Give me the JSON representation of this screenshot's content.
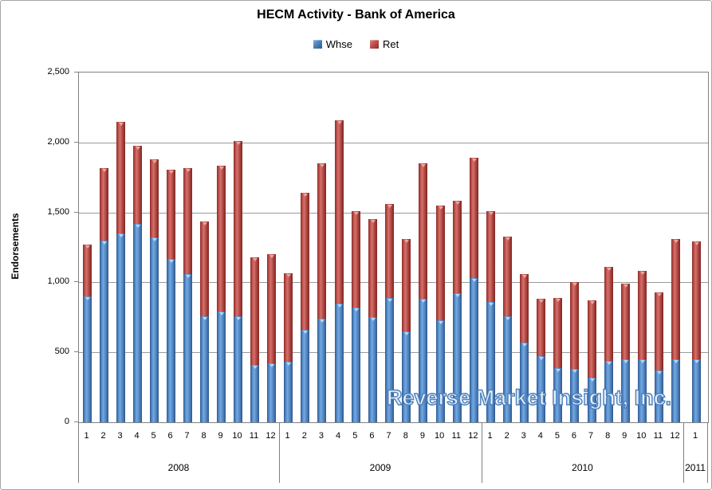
{
  "title": "HECM Activity - Bank of America",
  "legend": {
    "items": [
      {
        "label": "Whse",
        "color": "#4F81BD"
      },
      {
        "label": "Ret",
        "color": "#C0504D"
      }
    ]
  },
  "watermark": "Reverse Market Insight, Inc.",
  "yaxis": {
    "label": "Endorsements",
    "ticks": [
      "2,500",
      "2,000",
      "1,500",
      "1,000",
      "500",
      "0"
    ]
  },
  "chart_data": {
    "type": "bar",
    "stacked": true,
    "title": "HECM Activity - Bank of America",
    "xlabel": "",
    "ylabel": "Endorsements",
    "ylim": [
      0,
      2500
    ],
    "ytick_interval": 500,
    "grid": true,
    "legend_position": "top",
    "groups": [
      {
        "year": "2008",
        "months": [
          "1",
          "2",
          "3",
          "4",
          "5",
          "6",
          "7",
          "8",
          "9",
          "10",
          "11",
          "12"
        ]
      },
      {
        "year": "2009",
        "months": [
          "1",
          "2",
          "3",
          "4",
          "5",
          "6",
          "7",
          "8",
          "9",
          "10",
          "11",
          "12"
        ]
      },
      {
        "year": "2010",
        "months": [
          "1",
          "2",
          "3",
          "4",
          "5",
          "6",
          "7",
          "8",
          "9",
          "10",
          "11",
          "12"
        ]
      },
      {
        "year": "2011",
        "months": [
          "1"
        ]
      }
    ],
    "series": [
      {
        "name": "Whse",
        "color": "#4F81BD",
        "values": [
          900,
          1300,
          1350,
          1420,
          1320,
          1170,
          1060,
          760,
          790,
          760,
          410,
          420,
          430,
          660,
          740,
          850,
          820,
          750,
          890,
          650,
          880,
          730,
          920,
          1030,
          860,
          760,
          570,
          470,
          390,
          380,
          320,
          440,
          450,
          450,
          370,
          450,
          450
        ]
      },
      {
        "name": "Ret",
        "color": "#C0504D",
        "values": [
          370,
          520,
          800,
          560,
          560,
          640,
          760,
          680,
          1040,
          1250,
          770,
          780,
          630,
          980,
          1110,
          1310,
          690,
          700,
          670,
          660,
          970,
          820,
          660,
          860,
          650,
          570,
          490,
          410,
          500,
          620,
          550,
          670,
          540,
          630,
          560,
          860,
          840
        ]
      }
    ]
  }
}
